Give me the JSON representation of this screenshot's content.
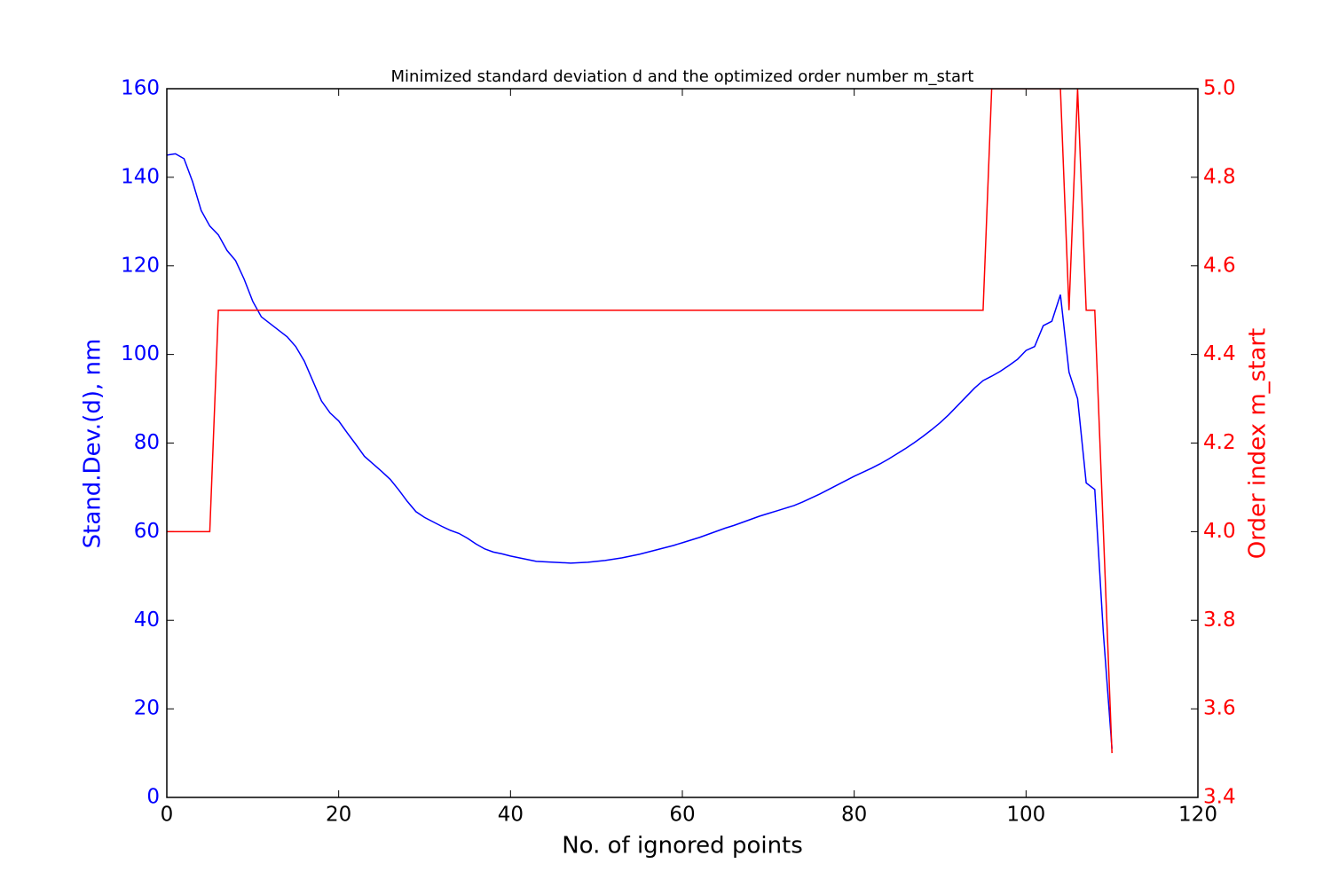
{
  "chart_data": {
    "type": "line",
    "title": "Minimized standard deviation d and the optimized order number m_start",
    "x_label": "No. of ignored points",
    "y_label": "Stand.Dev.(d), nm",
    "y2_label": "Order index m_start",
    "x": [
      0,
      1,
      2,
      3,
      4,
      5,
      6,
      7,
      8,
      9,
      10,
      11,
      12,
      13,
      14,
      15,
      16,
      17,
      18,
      19,
      20,
      21,
      22,
      23,
      24,
      25,
      26,
      27,
      28,
      29,
      30,
      31,
      32,
      33,
      34,
      35,
      36,
      37,
      38,
      39,
      40,
      41,
      42,
      43,
      44,
      45,
      46,
      47,
      48,
      49,
      50,
      51,
      52,
      53,
      54,
      55,
      56,
      57,
      58,
      59,
      60,
      61,
      62,
      63,
      64,
      65,
      66,
      67,
      68,
      69,
      70,
      71,
      72,
      73,
      74,
      75,
      76,
      77,
      78,
      79,
      80,
      81,
      82,
      83,
      84,
      85,
      86,
      87,
      88,
      89,
      90,
      91,
      92,
      93,
      94,
      95,
      96,
      97,
      98,
      99,
      100,
      101,
      102,
      103,
      104,
      105,
      106,
      107,
      108,
      109,
      110
    ],
    "series": [
      {
        "name": "Stand.Dev.(d)",
        "color": "#0000ff",
        "axis": "y",
        "values": [
          145,
          145.3,
          144.2,
          139,
          132.5,
          129,
          127,
          123.5,
          121.2,
          117,
          112,
          108.5,
          107,
          105.5,
          104,
          101.8,
          98.5,
          94,
          89.5,
          86.8,
          85,
          82.3,
          79.7,
          77,
          75.3,
          73.6,
          71.8,
          69.4,
          66.8,
          64.5,
          63.2,
          62.2,
          61.2,
          60.3,
          59.6,
          58.5,
          57.2,
          56.1,
          55.4,
          55,
          54.5,
          54.1,
          53.7,
          53.3,
          53.2,
          53.1,
          53,
          52.9,
          53,
          53.1,
          53.3,
          53.5,
          53.8,
          54.1,
          54.5,
          54.9,
          55.4,
          55.9,
          56.4,
          56.9,
          57.5,
          58.1,
          58.7,
          59.4,
          60.1,
          60.8,
          61.4,
          62.1,
          62.8,
          63.5,
          64.1,
          64.7,
          65.3,
          65.9,
          66.7,
          67.6,
          68.5,
          69.5,
          70.5,
          71.5,
          72.5,
          73.4,
          74.3,
          75.3,
          76.4,
          77.6,
          78.8,
          80.1,
          81.5,
          83,
          84.6,
          86.4,
          88.4,
          90.4,
          92.4,
          94.1,
          95.1,
          96.2,
          97.5,
          98.9,
          100.9,
          101.8,
          106.5,
          107.5,
          113.5,
          96,
          90,
          71,
          69.5,
          37,
          11
        ]
      },
      {
        "name": "Order index m_start",
        "color": "#ff0000",
        "axis": "y2",
        "values": [
          4,
          4,
          4,
          4,
          4,
          4,
          4.5,
          4.5,
          4.5,
          4.5,
          4.5,
          4.5,
          4.5,
          4.5,
          4.5,
          4.5,
          4.5,
          4.5,
          4.5,
          4.5,
          4.5,
          4.5,
          4.5,
          4.5,
          4.5,
          4.5,
          4.5,
          4.5,
          4.5,
          4.5,
          4.5,
          4.5,
          4.5,
          4.5,
          4.5,
          4.5,
          4.5,
          4.5,
          4.5,
          4.5,
          4.5,
          4.5,
          4.5,
          4.5,
          4.5,
          4.5,
          4.5,
          4.5,
          4.5,
          4.5,
          4.5,
          4.5,
          4.5,
          4.5,
          4.5,
          4.5,
          4.5,
          4.5,
          4.5,
          4.5,
          4.5,
          4.5,
          4.5,
          4.5,
          4.5,
          4.5,
          4.5,
          4.5,
          4.5,
          4.5,
          4.5,
          4.5,
          4.5,
          4.5,
          4.5,
          4.5,
          4.5,
          4.5,
          4.5,
          4.5,
          4.5,
          4.5,
          4.5,
          4.5,
          4.5,
          4.5,
          4.5,
          4.5,
          4.5,
          4.5,
          4.5,
          4.5,
          4.5,
          4.5,
          4.5,
          4.5,
          5,
          5,
          5,
          5,
          5,
          5,
          5,
          5,
          5,
          4.5,
          5,
          4.5,
          4.5,
          4,
          3.5
        ]
      }
    ],
    "xlim": [
      0,
      120
    ],
    "xticks": [
      0,
      20,
      40,
      60,
      80,
      100,
      120
    ],
    "ylim": [
      0,
      160
    ],
    "yticks": [
      0,
      20,
      40,
      60,
      80,
      100,
      120,
      140,
      160
    ],
    "y2lim": [
      3.4,
      5.0
    ],
    "y2ticks": [
      {
        "value": 3.4,
        "label": "3.4"
      },
      {
        "value": 3.6,
        "label": "3.6"
      },
      {
        "value": 3.8,
        "label": "3.8"
      },
      {
        "value": 4.0,
        "label": "4.0"
      },
      {
        "value": 4.2,
        "label": "4.2"
      },
      {
        "value": 4.4,
        "label": "4.4"
      },
      {
        "value": 4.6,
        "label": "4.6"
      },
      {
        "value": 4.8,
        "label": "4.8"
      },
      {
        "value": 5.0,
        "label": "5.0"
      }
    ],
    "y_label_color": "#0000ff",
    "y2_label_color": "#ff0000"
  }
}
